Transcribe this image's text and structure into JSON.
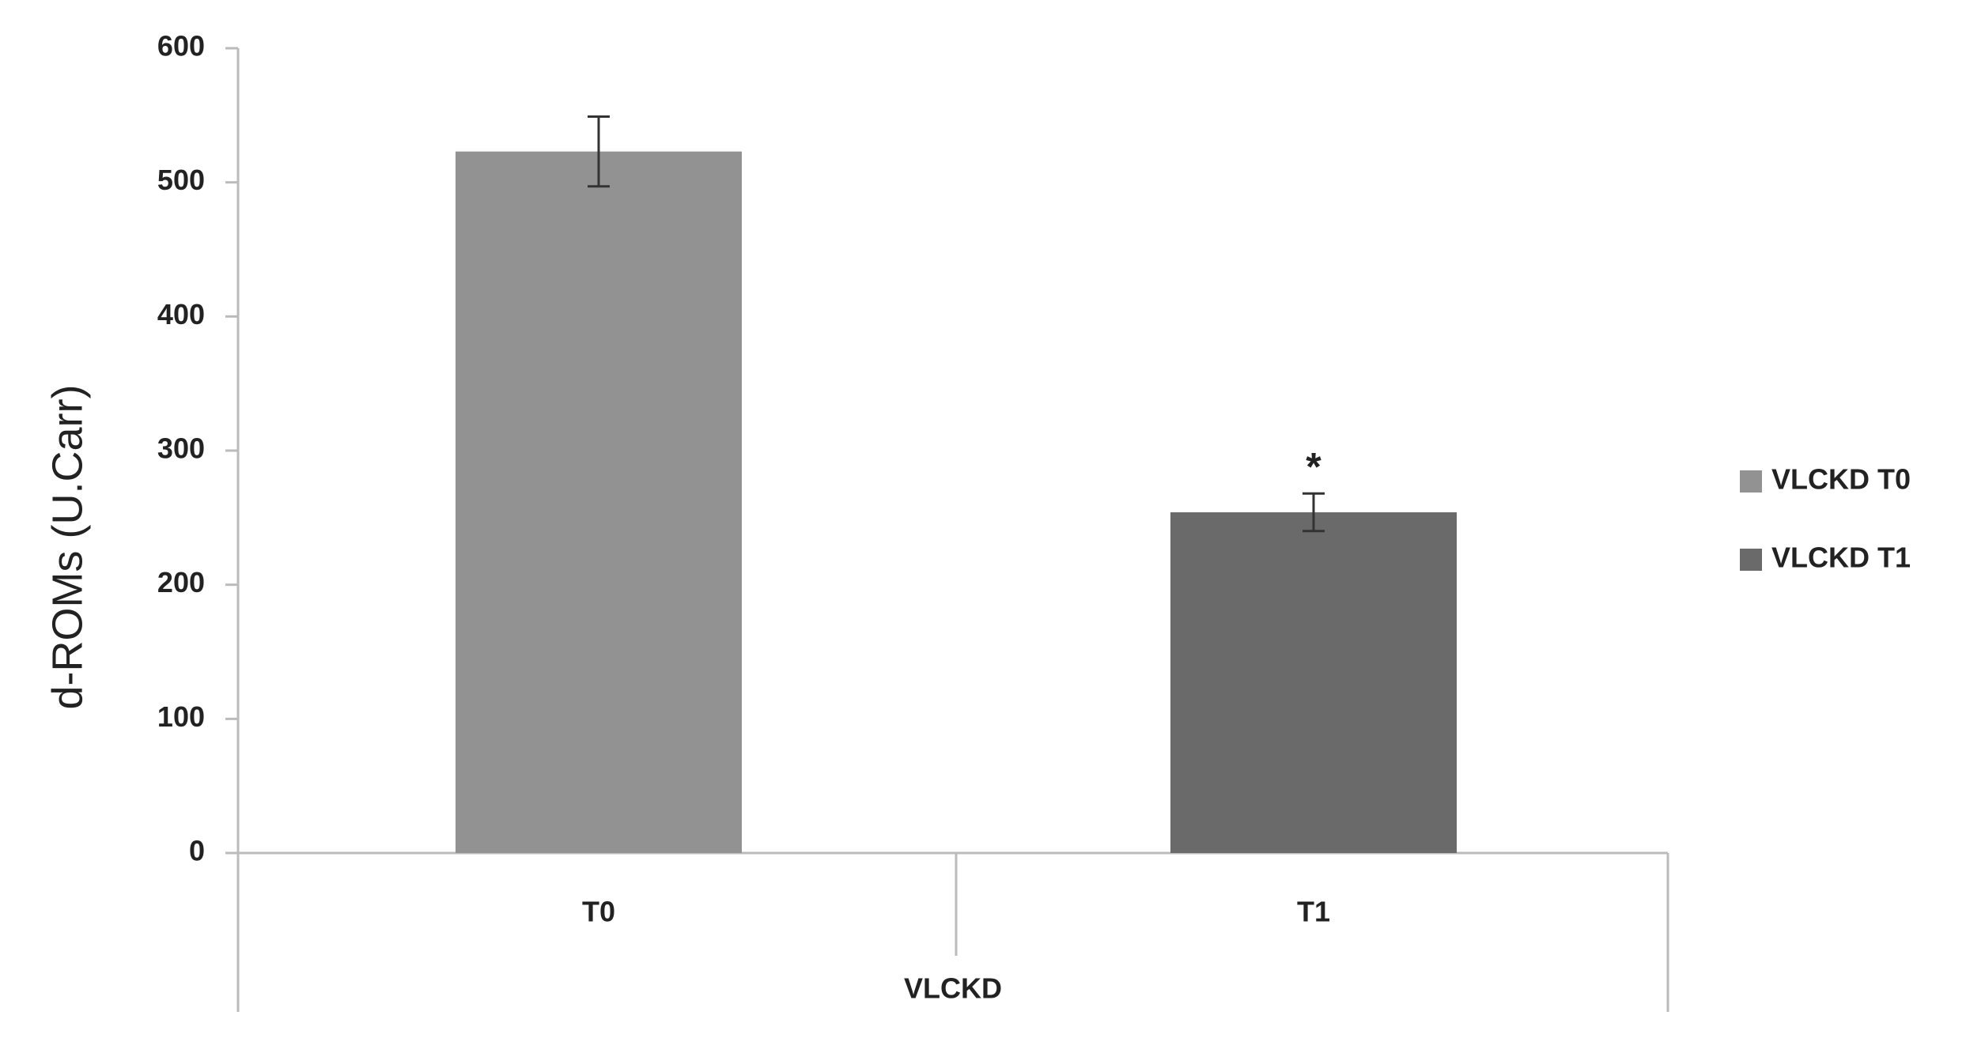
{
  "chart_data": {
    "type": "bar",
    "y_label": "d-ROMs (U.Carr)",
    "categories": [
      "T0",
      "T1"
    ],
    "group_label": "VLCKD",
    "series": [
      {
        "name": "VLCKD T0",
        "color": "#929292",
        "values": [
          523,
          null
        ],
        "errors": [
          26,
          null
        ],
        "annotations": [
          null,
          null
        ]
      },
      {
        "name": "VLCKD T1",
        "color": "#6a6a6a",
        "values": [
          null,
          254
        ],
        "errors": [
          null,
          14
        ],
        "annotations": [
          null,
          "*"
        ]
      }
    ],
    "ylim": [
      0,
      600
    ],
    "yticks": [
      0,
      100,
      200,
      300,
      400,
      500,
      600
    ],
    "grid": false,
    "legend": "right"
  }
}
